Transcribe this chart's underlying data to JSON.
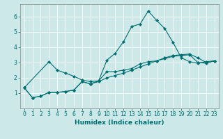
{
  "title": "",
  "xlabel": "Humidex (Indice chaleur)",
  "bg_color": "#cce8e8",
  "grid_color": "#ffffff",
  "line_color": "#007070",
  "xlim": [
    -0.5,
    23.5
  ],
  "ylim": [
    0,
    6.8
  ],
  "yticks": [
    1,
    2,
    3,
    4,
    5,
    6
  ],
  "xticks": [
    0,
    1,
    2,
    3,
    4,
    5,
    6,
    7,
    8,
    9,
    10,
    11,
    12,
    13,
    14,
    15,
    16,
    17,
    18,
    19,
    20,
    21,
    22,
    23
  ],
  "series1_x": [
    0,
    1,
    2,
    3,
    4,
    5,
    6,
    7,
    8,
    9,
    10,
    11,
    12,
    13,
    14,
    15,
    16,
    17,
    18,
    19,
    20,
    21,
    22,
    23
  ],
  "series1_y": [
    1.35,
    0.7,
    0.8,
    1.05,
    1.05,
    1.1,
    1.2,
    1.75,
    1.6,
    1.8,
    3.15,
    3.6,
    4.35,
    5.35,
    5.5,
    6.35,
    5.75,
    5.2,
    4.3,
    3.3,
    3.05,
    2.95,
    3.05,
    3.1
  ],
  "series2_x": [
    0,
    3,
    4,
    5,
    6,
    7,
    8,
    9,
    10,
    11,
    12,
    13,
    14,
    15,
    16,
    17,
    18,
    19,
    20,
    21,
    22,
    23
  ],
  "series2_y": [
    1.35,
    3.05,
    2.5,
    2.3,
    2.1,
    1.85,
    1.75,
    1.8,
    2.4,
    2.4,
    2.5,
    2.6,
    2.9,
    3.05,
    3.1,
    3.3,
    3.45,
    3.5,
    3.55,
    3.3,
    3.0,
    3.1
  ],
  "series3_x": [
    0,
    1,
    2,
    3,
    4,
    5,
    6,
    7,
    8,
    9,
    10,
    11,
    12,
    13,
    14,
    15,
    16,
    17,
    18,
    19,
    20,
    21,
    22,
    23
  ],
  "series3_y": [
    1.35,
    0.7,
    0.8,
    1.05,
    1.05,
    1.1,
    1.2,
    1.75,
    1.6,
    1.75,
    2.0,
    2.15,
    2.3,
    2.5,
    2.7,
    2.9,
    3.1,
    3.25,
    3.4,
    3.45,
    3.5,
    3.0,
    2.95,
    3.1
  ],
  "xlabel_fontsize": 6.5,
  "tick_fontsize": 5.5,
  "lw": 0.8,
  "ms": 2.2
}
